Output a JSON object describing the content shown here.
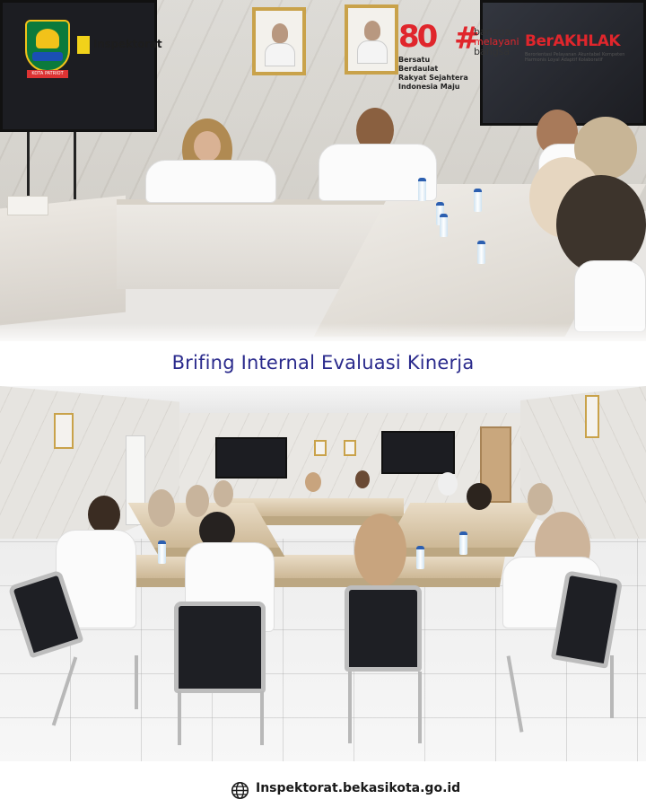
{
  "header": {
    "agency_name": "Inspektorat",
    "seal_text": "KOTA PATRIOT",
    "anniversary_logo": {
      "number": "80",
      "lines": [
        "Bersatu Berdaulat",
        "Rakyat Sejahtera",
        "Indonesia Maju"
      ]
    },
    "campaign": {
      "hashtag": "#",
      "line1": "bangga",
      "line2": "melayani",
      "line3": "bangsa"
    },
    "values_logo": {
      "name": "BerAKHLAK",
      "tagline": "Berorientasi Pelayanan Akuntabel Kompeten Harmonis Loyal Adaptif Kolaboratif"
    }
  },
  "title": "Brifing Internal Evaluasi Kinerja",
  "footer": {
    "icon": "globe-icon",
    "website": "Inspektorat.bekasikota.go.id"
  },
  "colors": {
    "title": "#2a2a8c",
    "brand_red": "#e0262c",
    "seal_green": "#0b7a3c"
  }
}
